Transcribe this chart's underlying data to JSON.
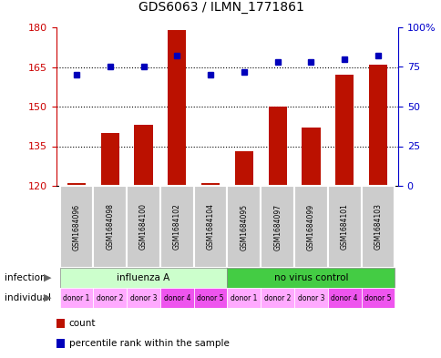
{
  "title": "GDS6063 / ILMN_1771861",
  "samples": [
    "GSM1684096",
    "GSM1684098",
    "GSM1684100",
    "GSM1684102",
    "GSM1684104",
    "GSM1684095",
    "GSM1684097",
    "GSM1684099",
    "GSM1684101",
    "GSM1684103"
  ],
  "counts": [
    121,
    140,
    143,
    179,
    121,
    133,
    150,
    142,
    162,
    166
  ],
  "percentiles": [
    70,
    75,
    75,
    82,
    70,
    72,
    78,
    78,
    80,
    82
  ],
  "ylim_left": [
    120,
    180
  ],
  "ylim_right": [
    0,
    100
  ],
  "yticks_left": [
    120,
    135,
    150,
    165,
    180
  ],
  "yticks_right": [
    0,
    25,
    50,
    75,
    100
  ],
  "infection_groups": [
    {
      "label": "influenza A",
      "start": 0,
      "end": 5,
      "color": "#ccffcc"
    },
    {
      "label": "no virus control",
      "start": 5,
      "end": 10,
      "color": "#44cc44"
    }
  ],
  "individual_labels": [
    "donor 1",
    "donor 2",
    "donor 3",
    "donor 4",
    "donor 5",
    "donor 1",
    "donor 2",
    "donor 3",
    "donor 4",
    "donor 5"
  ],
  "individual_colors": [
    "#ffaaff",
    "#ffaaff",
    "#ffaaff",
    "#ee55ee",
    "#ee55ee",
    "#ffaaff",
    "#ffaaff",
    "#ffaaff",
    "#ee55ee",
    "#ee55ee"
  ],
  "bar_color": "#bb1100",
  "dot_color": "#0000bb",
  "grid_color": "#000000",
  "infection_row_label": "infection",
  "individual_row_label": "individual",
  "legend_count_label": "count",
  "legend_percentile_label": "percentile rank within the sample",
  "bar_bottom": 120,
  "right_axis_color": "#0000cc",
  "left_axis_color": "#cc0000",
  "sample_box_color": "#cccccc",
  "right_ytick_labels": [
    "0",
    "25",
    "50",
    "75",
    "100%"
  ]
}
